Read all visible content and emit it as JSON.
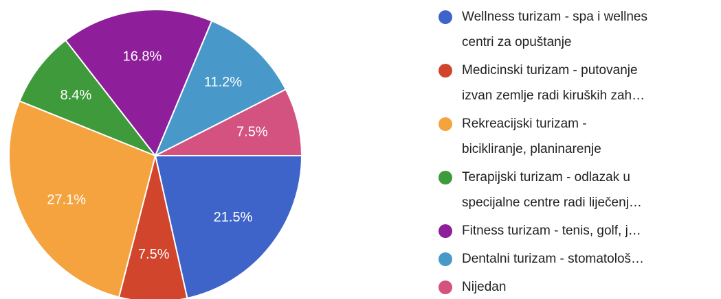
{
  "chart_data": {
    "type": "pie",
    "categories": [
      [
        "Wellness turizam - spa i wellnes",
        "centri za opuštanje"
      ],
      [
        "Medicinski turizam - putovanje",
        "izvan zemlje radi kiruških zah…"
      ],
      [
        "Rekreacijski turizam -",
        "bicikliranje, planinarenje"
      ],
      [
        "Terapijski turizam - odlazak u",
        "specijalne centre radi liječenj…"
      ],
      [
        "Fitness turizam - tenis, golf, j…"
      ],
      [
        "Dentalni turizam - stomatološ…"
      ],
      [
        "Nijedan"
      ]
    ],
    "values": [
      21.5,
      7.5,
      27.1,
      8.4,
      16.8,
      11.2,
      7.5
    ],
    "value_labels": [
      "21.5%",
      "7.5%",
      "27.1%",
      "8.4%",
      "16.8%",
      "11.2%",
      "7.5%"
    ],
    "colors": [
      "#3f64c9",
      "#d0452c",
      "#f4a33f",
      "#3e9a3a",
      "#8e1e9a",
      "#4899c9",
      "#d3527f"
    ]
  }
}
